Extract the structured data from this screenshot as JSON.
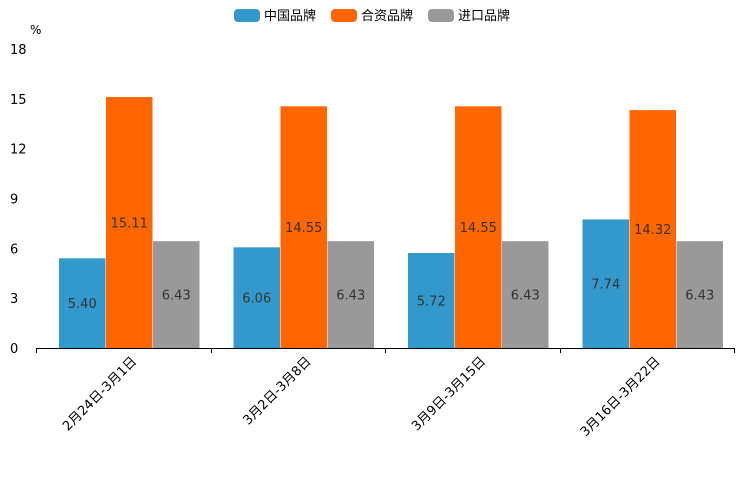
{
  "chart_data": {
    "type": "bar",
    "title": "",
    "ylabel": "%",
    "xlabel": "",
    "ylim": [
      0,
      18
    ],
    "yticks": [
      0,
      3,
      6,
      9,
      12,
      15,
      18
    ],
    "categories": [
      "2月24日-3月1日",
      "3月2日-3月8日",
      "3月9日-3月15日",
      "3月16日-3月22日"
    ],
    "series": [
      {
        "name": "中国品牌",
        "color": "#3399cc",
        "values": [
          5.4,
          6.06,
          5.72,
          7.74
        ],
        "labels": [
          "5.40",
          "6.06",
          "5.72",
          "7.74"
        ]
      },
      {
        "name": "合资品牌",
        "color": "#ff6600",
        "values": [
          15.11,
          14.55,
          14.55,
          14.32
        ],
        "labels": [
          "15.11",
          "14.55",
          "14.55",
          "14.32"
        ]
      },
      {
        "name": "进口品牌",
        "color": "#999999",
        "values": [
          6.43,
          6.43,
          6.43,
          6.43
        ],
        "labels": [
          "6.43",
          "6.43",
          "6.43",
          "6.43"
        ]
      }
    ],
    "legend_position": "top-center",
    "grid": false
  }
}
